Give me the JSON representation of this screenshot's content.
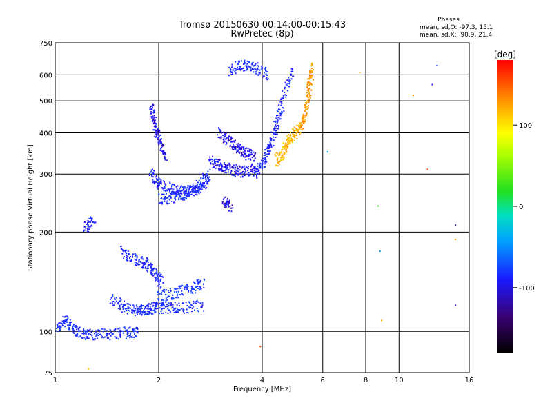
{
  "chart_data": {
    "type": "scatter",
    "title": "Tromsø 20150630 00:14:00-00:15:43",
    "subtitle": "RwPretec (8p)",
    "xlabel": "Frequency [MHz]",
    "ylabel": "Stationary phase Virtual Height [km]",
    "x_scale": "log",
    "y_scale": "log",
    "xlim": [
      1,
      16
    ],
    "ylim": [
      75,
      750
    ],
    "x_ticks": [
      1,
      2,
      4,
      6,
      8,
      10,
      16
    ],
    "y_ticks": [
      75,
      100,
      200,
      300,
      400,
      500,
      600,
      750
    ],
    "grid": true,
    "phase_legend": {
      "title": "Phases",
      "line_o": "mean, sd,O: -97.3, 15.1",
      "line_x": "mean, sd,X:  90.9, 21.4"
    },
    "colorbar": {
      "label": "[deg]",
      "range": [
        -180,
        180
      ],
      "ticks": [
        100,
        0,
        -100
      ]
    },
    "traces": [
      {
        "x": [
          1.0,
          1.08,
          1.15,
          1.25,
          1.4,
          1.6,
          1.75
        ],
        "y": [
          102,
          108,
          100,
          98,
          98,
          99,
          100
        ],
        "phase": -105
      },
      {
        "x": [
          1.22,
          1.3
        ],
        "y": [
          205,
          220
        ],
        "phase": -110
      },
      {
        "x": [
          1.45,
          1.6,
          1.75,
          1.85,
          1.95,
          2.1,
          2.35,
          2.7
        ],
        "y": [
          125,
          118,
          115,
          117,
          118,
          118,
          118,
          120
        ],
        "phase": -105
      },
      {
        "x": [
          1.55,
          1.7,
          1.85,
          1.95,
          2.05
        ],
        "y": [
          175,
          165,
          160,
          150,
          140
        ],
        "phase": -110
      },
      {
        "x": [
          2.0,
          2.2,
          2.5,
          2.7
        ],
        "y": [
          128,
          130,
          135,
          140
        ],
        "phase": -100
      },
      {
        "x": [
          1.9,
          1.95,
          2.0,
          2.1
        ],
        "y": [
          480,
          420,
          380,
          340
        ],
        "phase": -115
      },
      {
        "x": [
          1.9,
          2.0,
          2.2,
          2.4,
          2.6,
          2.8
        ],
        "y": [
          300,
          280,
          270,
          265,
          270,
          290
        ],
        "phase": -110
      },
      {
        "x": [
          2.0,
          2.2,
          2.4,
          2.6,
          2.8
        ],
        "y": [
          250,
          255,
          262,
          275,
          300
        ],
        "phase": -105
      },
      {
        "x": [
          2.8,
          3.0,
          3.2,
          3.5,
          3.8
        ],
        "y": [
          330,
          320,
          310,
          305,
          310
        ],
        "phase": -115
      },
      {
        "x": [
          3.0,
          3.2,
          3.4,
          3.6,
          3.8
        ],
        "y": [
          400,
          380,
          360,
          345,
          340
        ],
        "phase": -120
      },
      {
        "x": [
          3.1,
          3.25
        ],
        "y": [
          250,
          240
        ],
        "phase": -125
      },
      {
        "x": [
          3.8,
          4.0,
          4.2,
          4.4,
          4.6,
          4.9
        ],
        "y": [
          300,
          320,
          360,
          420,
          500,
          620
        ],
        "phase": -110
      },
      {
        "x": [
          3.2,
          3.5,
          3.8,
          4.2
        ],
        "y": [
          620,
          640,
          630,
          600
        ],
        "phase": -105
      },
      {
        "x": [
          4.4,
          4.6,
          4.8,
          5.0,
          5.2
        ],
        "y": [
          330,
          350,
          380,
          400,
          420
        ],
        "phase": 95
      },
      {
        "x": [
          5.2,
          5.4,
          5.5,
          5.6
        ],
        "y": [
          420,
          480,
          560,
          640
        ],
        "phase": 110
      }
    ],
    "isolated_points": [
      {
        "x": 1.25,
        "y": 77,
        "phase": 90
      },
      {
        "x": 3.95,
        "y": 90,
        "phase": 160
      },
      {
        "x": 8.7,
        "y": 240,
        "phase": 10
      },
      {
        "x": 8.8,
        "y": 175,
        "phase": -50
      },
      {
        "x": 8.9,
        "y": 108,
        "phase": 95
      },
      {
        "x": 11.0,
        "y": 520,
        "phase": 110
      },
      {
        "x": 12.1,
        "y": 310,
        "phase": 150
      },
      {
        "x": 12.5,
        "y": 560,
        "phase": -120
      },
      {
        "x": 12.9,
        "y": 640,
        "phase": -110
      },
      {
        "x": 14.6,
        "y": 210,
        "phase": -130
      },
      {
        "x": 14.6,
        "y": 190,
        "phase": 100
      },
      {
        "x": 14.6,
        "y": 120,
        "phase": -120
      },
      {
        "x": 7.7,
        "y": 610,
        "phase": 90
      },
      {
        "x": 6.2,
        "y": 350,
        "phase": -50
      }
    ]
  }
}
